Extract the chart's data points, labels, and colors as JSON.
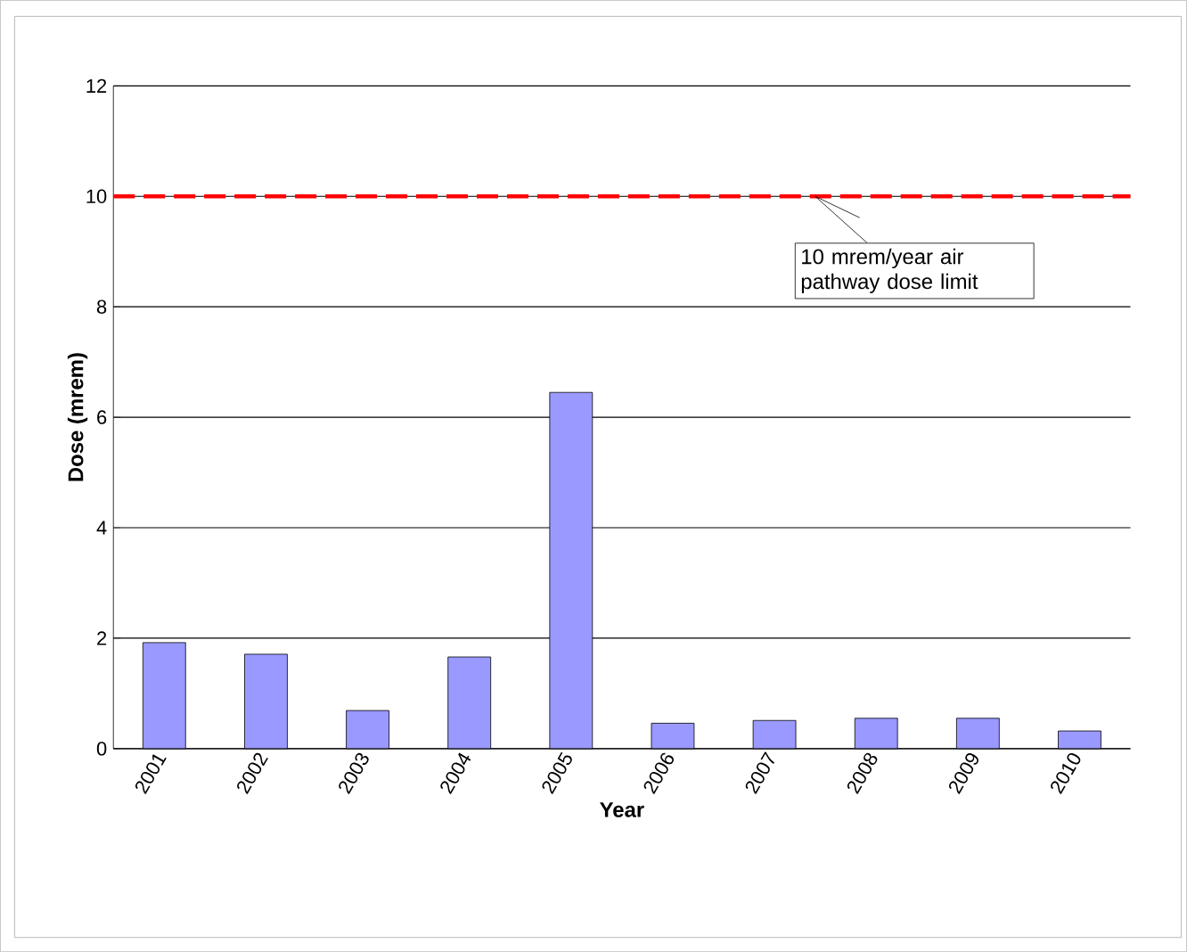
{
  "chart_data": {
    "type": "bar",
    "xlabel": "Year",
    "ylabel": "Dose (mrem)",
    "categories": [
      "2001",
      "2002",
      "2003",
      "2004",
      "2005",
      "2006",
      "2007",
      "2008",
      "2009",
      "2010"
    ],
    "values": [
      1.92,
      1.71,
      0.69,
      1.66,
      6.45,
      0.46,
      0.51,
      0.55,
      0.55,
      0.32
    ],
    "color": "#9999ff",
    "ylim": [
      0,
      12
    ],
    "yticks": [
      0,
      2,
      4,
      6,
      8,
      10,
      12
    ],
    "grid": "y",
    "ref_lines": [
      {
        "axis": "y",
        "value": 10,
        "label": "10 mrem/year air pathway dose limit",
        "color": "#ff0000",
        "line_style": "dashed"
      }
    ]
  }
}
